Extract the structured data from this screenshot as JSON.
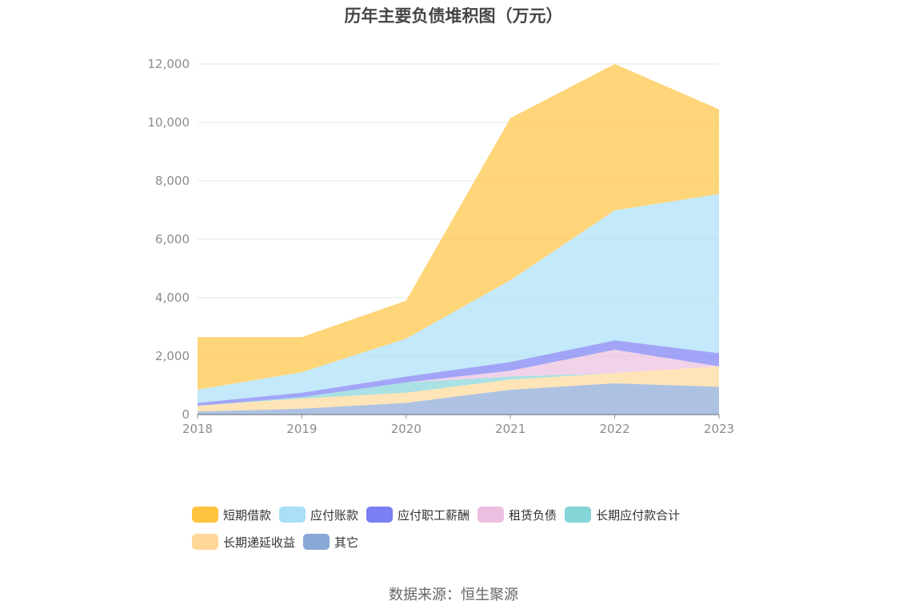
{
  "source_note": "数据来源：恒生聚源",
  "chart_data": {
    "type": "area",
    "stacked": true,
    "title": "历年主要负债堆积图（万元）",
    "xlabel": "",
    "ylabel": "",
    "x": [
      "2018",
      "2019",
      "2020",
      "2021",
      "2022",
      "2023"
    ],
    "ylim": [
      0,
      12000
    ],
    "yticks": [
      0,
      2000,
      4000,
      6000,
      8000,
      10000,
      12000
    ],
    "ytick_labels": [
      "0",
      "2,000",
      "4,000",
      "6,000",
      "8,000",
      "10,000",
      "12,000"
    ],
    "grid": true,
    "legend_position": "bottom",
    "series": [
      {
        "name": "其它",
        "color": "#8aa8d6",
        "values": [
          100,
          200,
          400,
          850,
          1070,
          950
        ]
      },
      {
        "name": "长期递延收益",
        "color": "#ffd899",
        "values": [
          200,
          350,
          350,
          350,
          350,
          700
        ]
      },
      {
        "name": "长期应付款合计",
        "color": "#85d4d8",
        "values": [
          0,
          50,
          350,
          100,
          0,
          0
        ]
      },
      {
        "name": "租赁负债",
        "color": "#ecbfe0",
        "values": [
          0,
          0,
          0,
          200,
          800,
          0
        ]
      },
      {
        "name": "应付职工薪酬",
        "color": "#7a7ff3",
        "values": [
          100,
          150,
          200,
          300,
          320,
          450
        ]
      },
      {
        "name": "应付账款",
        "color": "#a9dff8",
        "values": [
          450,
          700,
          1300,
          2800,
          4450,
          5450
        ]
      },
      {
        "name": "短期借款",
        "color": "#ffc340",
        "values": [
          1800,
          1200,
          1300,
          5550,
          5010,
          2900
        ]
      }
    ],
    "legend_order": [
      "短期借款",
      "应付账款",
      "应付职工薪酬",
      "租赁负债",
      "长期应付款合计",
      "长期递延收益",
      "其它"
    ]
  }
}
